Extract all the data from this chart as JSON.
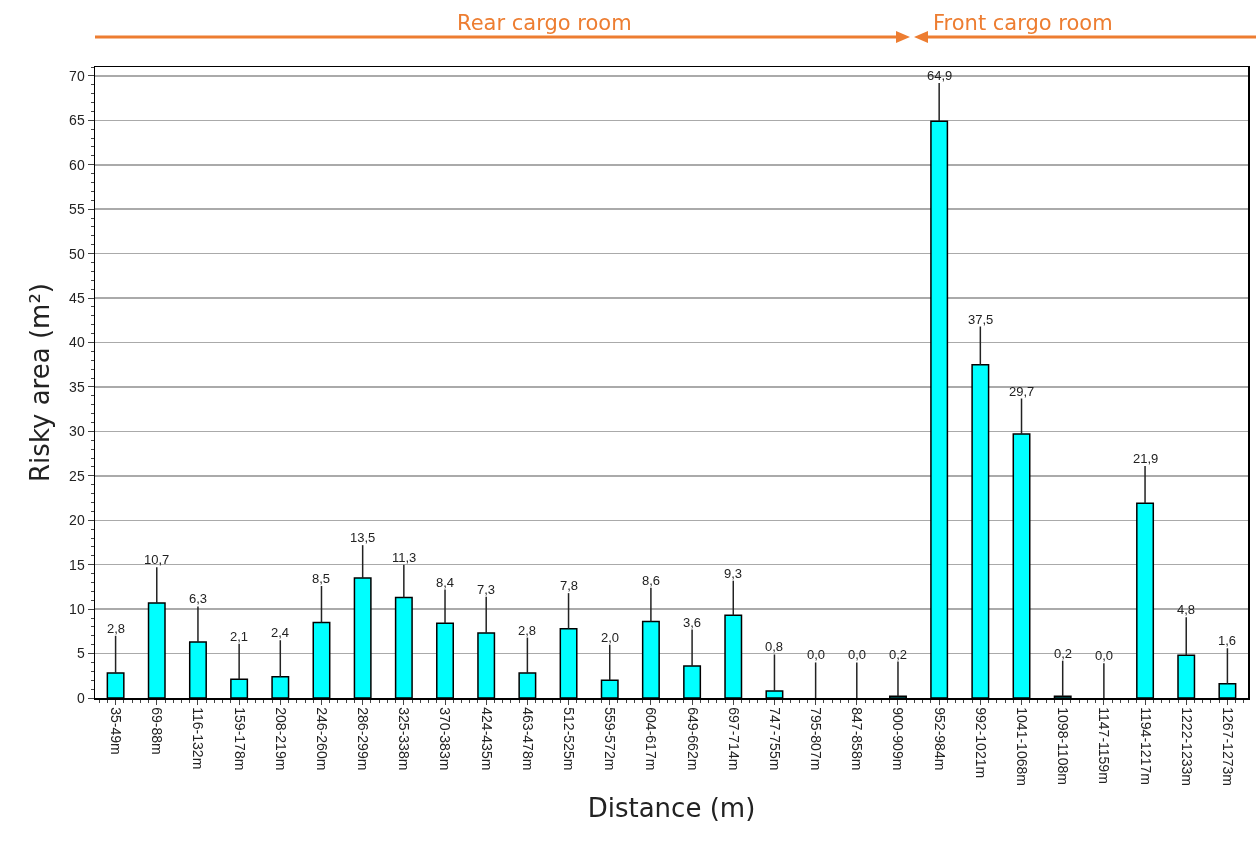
{
  "chart_data": {
    "type": "bar",
    "xlabel": "Distance (m)",
    "ylabel": "Risky area (m²)",
    "annotations": [
      "Rear cargo room",
      "Front cargo room"
    ],
    "categories": [
      "35-49m",
      "69-88m",
      "116-132m",
      "159-178m",
      "208-219m",
      "246-260m",
      "286-299m",
      "325-338m",
      "370-383m",
      "424-435m",
      "463-478m",
      "512-525m",
      "559-572m",
      "604-617m",
      "649-662m",
      "697-714m",
      "747-755m",
      "795-807m",
      "847-858m",
      "900-909m",
      "952-984m",
      "992-1021m",
      "1041-1068m",
      "1098-1108m",
      "1147-1159m",
      "1194-1217m",
      "1222-1233m",
      "1267-1273m"
    ],
    "values": [
      2.8,
      10.7,
      6.3,
      2.1,
      2.4,
      8.5,
      13.5,
      11.3,
      8.4,
      7.3,
      2.8,
      7.8,
      2.0,
      8.6,
      3.6,
      9.3,
      0.8,
      0.0,
      0.0,
      0.2,
      64.9,
      37.5,
      29.7,
      0.2,
      0.0,
      21.9,
      4.8,
      1.6
    ],
    "value_labels": [
      "2,8",
      "10,7",
      "6,3",
      "2,1",
      "2,4",
      "8,5",
      "13,5",
      "11,3",
      "8,4",
      "7,3",
      "2,8",
      "7,8",
      "2,0",
      "8,6",
      "3,6",
      "9,3",
      "0,8",
      "0,0",
      "0,0",
      "0,2",
      "64,9",
      "37,5",
      "29,7",
      "0,2",
      "0,0",
      "21,9",
      "4,8",
      "1,6"
    ],
    "errors": [
      [
        2.8,
        7.0
      ],
      [
        10.7,
        14.7
      ],
      [
        6.3,
        10.3
      ],
      [
        2.1,
        6.1
      ],
      [
        2.4,
        6.5
      ],
      [
        8.5,
        12.6
      ],
      [
        13.5,
        17.2
      ],
      [
        11.3,
        15.0
      ],
      [
        8.4,
        12.2
      ],
      [
        7.3,
        11.4
      ],
      [
        2.8,
        6.8
      ],
      [
        7.8,
        11.8
      ],
      [
        2.0,
        6.0
      ],
      [
        8.6,
        12.4
      ],
      [
        3.6,
        7.7
      ],
      [
        9.3,
        13.2
      ],
      [
        0.8,
        4.9
      ],
      [
        0.0,
        4.0
      ],
      [
        0.0,
        4.0
      ],
      [
        0.2,
        4.1
      ],
      [
        64.9,
        69.2
      ],
      [
        37.5,
        41.8
      ],
      [
        29.7,
        33.7
      ],
      [
        0.2,
        4.2
      ],
      [
        0.0,
        3.9
      ],
      [
        21.9,
        26.1
      ],
      [
        4.8,
        9.1
      ],
      [
        1.6,
        5.6
      ]
    ],
    "color": "#00ffff",
    "ylim": [
      0,
      71
    ],
    "yticks": [
      0,
      5,
      10,
      15,
      20,
      25,
      30,
      35,
      40,
      45,
      50,
      55,
      60,
      65,
      70
    ],
    "grid": "y"
  }
}
